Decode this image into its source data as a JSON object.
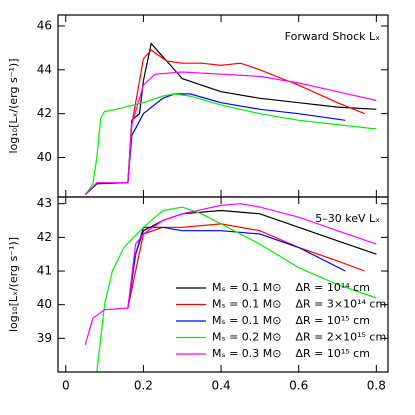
{
  "chart_data": [
    {
      "type": "line",
      "annotation": "Forward Shock Lₓ",
      "ylabel": "log₁₀[Lₓ/(erg s⁻¹)]",
      "xlim": [
        -0.02,
        0.83
      ],
      "xticks": [
        0,
        0.2,
        0.4,
        0.6,
        0.8
      ],
      "xtick_labels": false,
      "ylim": [
        38.2,
        46.5
      ],
      "yticks": [
        40,
        42,
        44,
        46
      ],
      "legend": false,
      "series": [
        {
          "color": "#000000",
          "x": [
            0.05,
            0.08,
            0.16,
            0.17,
            0.19,
            0.2,
            0.22,
            0.24,
            0.27,
            0.3,
            0.35,
            0.4,
            0.5,
            0.6,
            0.7,
            0.8
          ],
          "values": [
            38.3,
            38.8,
            38.85,
            41.7,
            42,
            43.5,
            45.2,
            44.8,
            44.2,
            43.6,
            43.3,
            43,
            42.7,
            42.5,
            42.3,
            42.2
          ]
        },
        {
          "color": "#ff0000",
          "x": [
            0.16,
            0.17,
            0.2,
            0.22,
            0.26,
            0.3,
            0.35,
            0.4,
            0.45,
            0.5,
            0.6,
            0.7,
            0.77
          ],
          "values": [
            38.85,
            41.5,
            44.5,
            44.9,
            44.4,
            44.3,
            44.3,
            44.2,
            44.3,
            44,
            43.3,
            42.5,
            42
          ]
        },
        {
          "color": "#0000ff",
          "x": [
            0.16,
            0.17,
            0.2,
            0.25,
            0.28,
            0.32,
            0.4,
            0.5,
            0.6,
            0.72
          ],
          "values": [
            38.85,
            41,
            42,
            42.7,
            42.9,
            42.9,
            42.5,
            42.2,
            42,
            41.7
          ]
        },
        {
          "color": "#00ee00",
          "x": [
            0.05,
            0.07,
            0.08,
            0.09,
            0.1,
            0.13,
            0.2,
            0.25,
            0.28,
            0.32,
            0.4,
            0.5,
            0.6,
            0.7,
            0.8
          ],
          "values": [
            38.3,
            38.8,
            40,
            41.8,
            42.1,
            42.2,
            42.5,
            42.8,
            42.9,
            42.8,
            42.4,
            42,
            41.7,
            41.5,
            41.3
          ]
        },
        {
          "color": "#ff00ff",
          "x": [
            0.05,
            0.08,
            0.16,
            0.17,
            0.2,
            0.23,
            0.3,
            0.4,
            0.5,
            0.6,
            0.7,
            0.8
          ],
          "values": [
            38.3,
            38.85,
            38.85,
            41.5,
            43.3,
            43.8,
            43.9,
            43.8,
            43.7,
            43.4,
            43,
            42.6
          ]
        }
      ]
    },
    {
      "type": "line",
      "annotation": "5–30 keV Lₓ",
      "ylabel": "log₁₀[Lₓ/(erg s⁻¹)]",
      "xlim": [
        -0.02,
        0.83
      ],
      "xticks": [
        0,
        0.2,
        0.4,
        0.6,
        0.8
      ],
      "xtick_labels": true,
      "ylim": [
        38,
        43.2
      ],
      "yticks": [
        39,
        40,
        41,
        42,
        43
      ],
      "legend": true,
      "series": [
        {
          "name": "Mₛ = 0.1 M⊙    ΔR = 10¹⁴ cm",
          "color": "#000000",
          "x": [
            0.16,
            0.18,
            0.2,
            0.25,
            0.3,
            0.4,
            0.5,
            0.6,
            0.7,
            0.8
          ],
          "values": [
            39.9,
            41.5,
            42.2,
            42.5,
            42.7,
            42.8,
            42.7,
            42.3,
            41.9,
            41.5
          ]
        },
        {
          "name": "Mₛ = 0.1 M⊙    ΔR = 3×10¹⁴ cm",
          "color": "#ff0000",
          "x": [
            0.16,
            0.18,
            0.2,
            0.25,
            0.3,
            0.4,
            0.5,
            0.6,
            0.7,
            0.77
          ],
          "values": [
            39.9,
            41,
            42.1,
            42.3,
            42.3,
            42.4,
            42.2,
            41.7,
            41.3,
            41
          ]
        },
        {
          "name": "Mₛ = 0.1 M⊙    ΔR = 10¹⁵ cm",
          "color": "#0000ff",
          "x": [
            0.16,
            0.18,
            0.2,
            0.25,
            0.3,
            0.4,
            0.5,
            0.6,
            0.72
          ],
          "values": [
            39.9,
            41.5,
            42.3,
            42.3,
            42.2,
            42.2,
            42.1,
            41.7,
            41
          ]
        },
        {
          "name": "Mₛ = 0.2 M⊙    ΔR = 2×10¹⁵ cm",
          "color": "#00ee00",
          "x": [
            0.08,
            0.1,
            0.12,
            0.15,
            0.2,
            0.25,
            0.3,
            0.35,
            0.4,
            0.5,
            0.6,
            0.7,
            0.8
          ],
          "values": [
            38,
            40,
            41,
            41.7,
            42.3,
            42.8,
            42.9,
            42.7,
            42.4,
            41.8,
            41.1,
            40.6,
            40.2
          ]
        },
        {
          "name": "Mₛ = 0.3 M⊙    ΔR = 10¹⁵ cm",
          "color": "#ff00ff",
          "x": [
            0.05,
            0.07,
            0.1,
            0.16,
            0.18,
            0.2,
            0.25,
            0.3,
            0.4,
            0.45,
            0.5,
            0.6,
            0.7,
            0.8
          ],
          "values": [
            38.8,
            39.6,
            39.85,
            39.9,
            41.8,
            42.1,
            42.5,
            42.7,
            42.95,
            43,
            42.9,
            42.6,
            42.2,
            41.8
          ]
        }
      ]
    }
  ]
}
